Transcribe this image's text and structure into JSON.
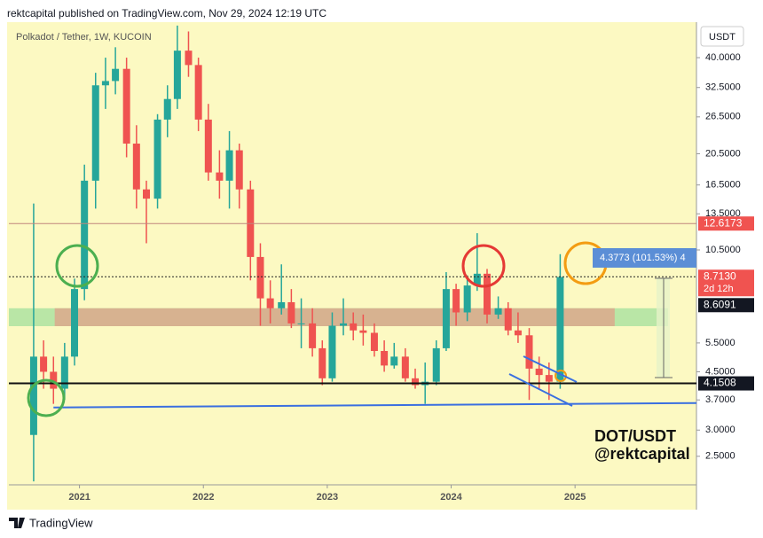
{
  "header": "rektcapital published on TradingView.com, Nov 29, 2024 12:19 UTC",
  "chart_data": {
    "type": "candlestick",
    "title": "Polkadot / Tether, 1W, KUCOIN",
    "currency": "USDT",
    "x": [
      2020.63,
      2020.71,
      2020.79,
      2020.88,
      2020.96,
      2021.04,
      2021.13,
      2021.21,
      2021.29,
      2021.38,
      2021.46,
      2021.54,
      2021.63,
      2021.71,
      2021.79,
      2021.88,
      2021.96,
      2022.04,
      2022.13,
      2022.21,
      2022.29,
      2022.38,
      2022.46,
      2022.54,
      2022.63,
      2022.71,
      2022.79,
      2022.88,
      2022.96,
      2023.04,
      2023.13,
      2023.21,
      2023.29,
      2023.38,
      2023.46,
      2023.54,
      2023.63,
      2023.71,
      2023.79,
      2023.88,
      2023.96,
      2024.04,
      2024.13,
      2024.21,
      2024.29,
      2024.38,
      2024.46,
      2024.54,
      2024.63,
      2024.71,
      2024.79,
      2024.88
    ],
    "open": [
      2.9,
      5.0,
      4.5,
      4.0,
      5.0,
      8.0,
      17,
      33,
      34,
      37,
      22,
      16,
      15,
      26,
      30,
      42,
      38,
      26,
      18,
      17,
      21,
      16,
      10,
      7.5,
      7.0,
      7.3,
      6.3,
      6.3,
      5.3,
      4.3,
      6.2,
      6.3,
      6.0,
      5.9,
      5.2,
      4.7,
      5.0,
      4.3,
      4.1,
      4.2,
      5.3,
      8.0,
      6.8,
      8.2,
      8.9,
      6.7,
      7.0,
      6.0,
      5.8,
      4.6,
      4.4,
      4.2
    ],
    "high": [
      14.5,
      5.6,
      5.0,
      5.5,
      8.6,
      19,
      36,
      40,
      43,
      40,
      25,
      17,
      27,
      33,
      50,
      48,
      40,
      29,
      21,
      24,
      22,
      17,
      11,
      8.5,
      9.5,
      8.0,
      7.5,
      7.0,
      5.6,
      6.8,
      7.5,
      6.8,
      6.7,
      6.3,
      5.6,
      5.5,
      5.3,
      4.6,
      4.8,
      5.6,
      9.0,
      8.3,
      8.8,
      11.8,
      9.2,
      7.6,
      7.3,
      6.8,
      6.1,
      5.0,
      4.8,
      10.2
    ],
    "low": [
      2.1,
      4.0,
      3.6,
      3.7,
      4.7,
      7.4,
      14,
      28,
      31,
      20,
      14,
      11,
      14,
      23,
      28,
      35,
      24,
      17,
      15,
      14,
      14,
      8.5,
      6.2,
      6.3,
      6.7,
      6.1,
      5.3,
      5.0,
      4.1,
      4.2,
      5.8,
      5.6,
      5.4,
      5.0,
      4.5,
      4.6,
      4.2,
      4.0,
      3.6,
      4.1,
      5.2,
      6.2,
      6.4,
      7.9,
      6.3,
      6.5,
      5.8,
      5.5,
      3.7,
      4.0,
      3.7,
      4.0
    ],
    "close": [
      5.0,
      4.5,
      4.0,
      5.0,
      8.0,
      17,
      33,
      34,
      37,
      22,
      16,
      15,
      26,
      30,
      42,
      38,
      26,
      18,
      17,
      21,
      16,
      10,
      7.5,
      7.0,
      7.3,
      6.3,
      6.3,
      5.3,
      4.3,
      6.2,
      6.3,
      6.0,
      5.9,
      5.2,
      4.7,
      5.0,
      4.3,
      4.1,
      4.2,
      5.3,
      8.0,
      6.8,
      8.2,
      8.9,
      6.7,
      7.0,
      6.0,
      5.8,
      4.6,
      4.4,
      4.2,
      8.7
    ],
    "colors": {
      "up": "#26a69a",
      "down": "#ef5350"
    },
    "xlim": [
      2020.43,
      2025.98
    ],
    "xticks": [
      2021,
      2022,
      2023,
      2024,
      2025
    ],
    "ylim": [
      2.05,
      51.2
    ],
    "log_scale": true,
    "yticks": [
      {
        "value": 40,
        "label": "40.0000"
      },
      {
        "value": 32.5,
        "label": "32.5000"
      },
      {
        "value": 26.5,
        "label": "26.5000"
      },
      {
        "value": 20.5,
        "label": "20.5000"
      },
      {
        "value": 16.5,
        "label": "16.5000"
      },
      {
        "value": 13.5,
        "label": "13.5000"
      },
      {
        "value": 10.5,
        "label": "10.5000"
      },
      {
        "value": 5.5,
        "label": "5.5000"
      },
      {
        "value": 4.5,
        "label": "4.5000"
      },
      {
        "value": 3.7,
        "label": "3.7000"
      },
      {
        "value": 3,
        "label": "3.0000"
      },
      {
        "value": 2.5,
        "label": "2.5000"
      }
    ],
    "levels": [
      {
        "value": 12.6173,
        "label": "12.6173",
        "color": "#f05350",
        "line": "solid"
      },
      {
        "value": 8.713,
        "label": "8.7130",
        "color": "#f05350",
        "line": "dotted",
        "countdown": "2d 12h"
      },
      {
        "value": 8.6091,
        "label": "8.6091",
        "color": "#131722",
        "line": "none"
      },
      {
        "value": 4.1508,
        "label": "4.1508",
        "color": "#131722",
        "line": "thick"
      }
    ],
    "zones": [
      {
        "range": [
          6.18,
          7.0
        ],
        "x": [
          2020.43,
          2025.75
        ],
        "color": "#b9e6a6"
      },
      {
        "range": [
          6.18,
          7.0
        ],
        "x": [
          2020.8,
          2025.32
        ],
        "color": "#d7b290"
      }
    ],
    "trendline": {
      "x": [
        2020.79,
        2025.98
      ],
      "y": [
        3.51,
        3.62
      ],
      "color": "#3a6fe0"
    },
    "measure_label": "4.3773 (101.53%) 4"
  },
  "watermark": [
    "DOT/USDT",
    "@rektcapital"
  ],
  "footer": "TradingView"
}
